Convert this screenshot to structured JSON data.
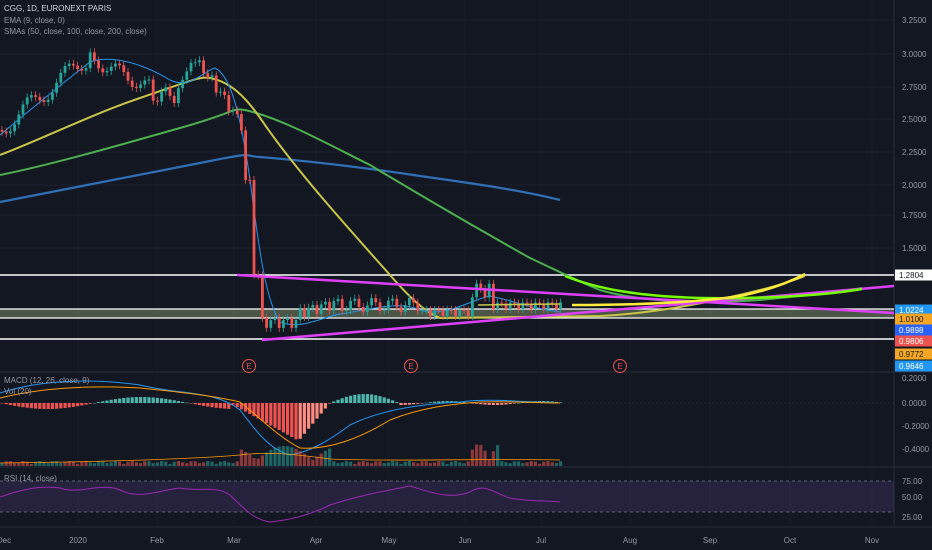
{
  "header": {
    "symbol": "CGG, 1D, EURONEXT PARIS",
    "ema": "EMA (9, close, 0)",
    "smas": "SMAs (50, close, 100, close, 200, close)"
  },
  "panes": {
    "macd_label": "MACD (12, 26, close, 9)",
    "macd_sub": "Vol (20)",
    "rsi_label": "RSI (14, close)"
  },
  "price_axis": [
    "3.2500",
    "3.0000",
    "2.7500",
    "2.5000",
    "2.2500",
    "2.0000",
    "1.7500",
    "1.5000"
  ],
  "macd_axis": [
    "0.2000",
    "0.0000",
    "-0.2000",
    "-0.4000"
  ],
  "rsi_axis": [
    "75.00",
    "50.00",
    "25.00"
  ],
  "time_axis": [
    "Dec",
    "2020",
    "Feb",
    "Mar",
    "Apr",
    "May",
    "Jun",
    "Jul",
    "Aug",
    "Sep",
    "Oct",
    "Nov"
  ],
  "earnings_marker": "E",
  "price_tags": [
    {
      "label": "1.2804",
      "bg": "#ffffff",
      "fg": "#131722"
    },
    {
      "label": "1.0224",
      "bg": "#2196f3",
      "fg": "#ffffff"
    },
    {
      "label": "1.0100",
      "bg": "#f5a623",
      "fg": "#131722"
    },
    {
      "label": "0.9898",
      "bg": "#2962ff",
      "fg": "#ffffff"
    },
    {
      "label": "0.9806",
      "bg": "#ef5350",
      "fg": "#ffffff"
    },
    {
      "label": "0.9772",
      "bg": "#f5a623",
      "fg": "#131722"
    },
    {
      "label": "0.9646",
      "bg": "#2196f3",
      "fg": "#ffffff"
    }
  ],
  "colors": {
    "background": "#131722",
    "up": "#26a69a",
    "down": "#ef5350",
    "ema": "#2196f3",
    "sma50": "#c8c547",
    "sma100": "#4caf50",
    "sma200": "#2e6fb5",
    "triangle": "#e040fb",
    "projection_green": "#76ff03",
    "projection_yellow": "#ffeb3b",
    "hline": "#ffffff"
  }
}
